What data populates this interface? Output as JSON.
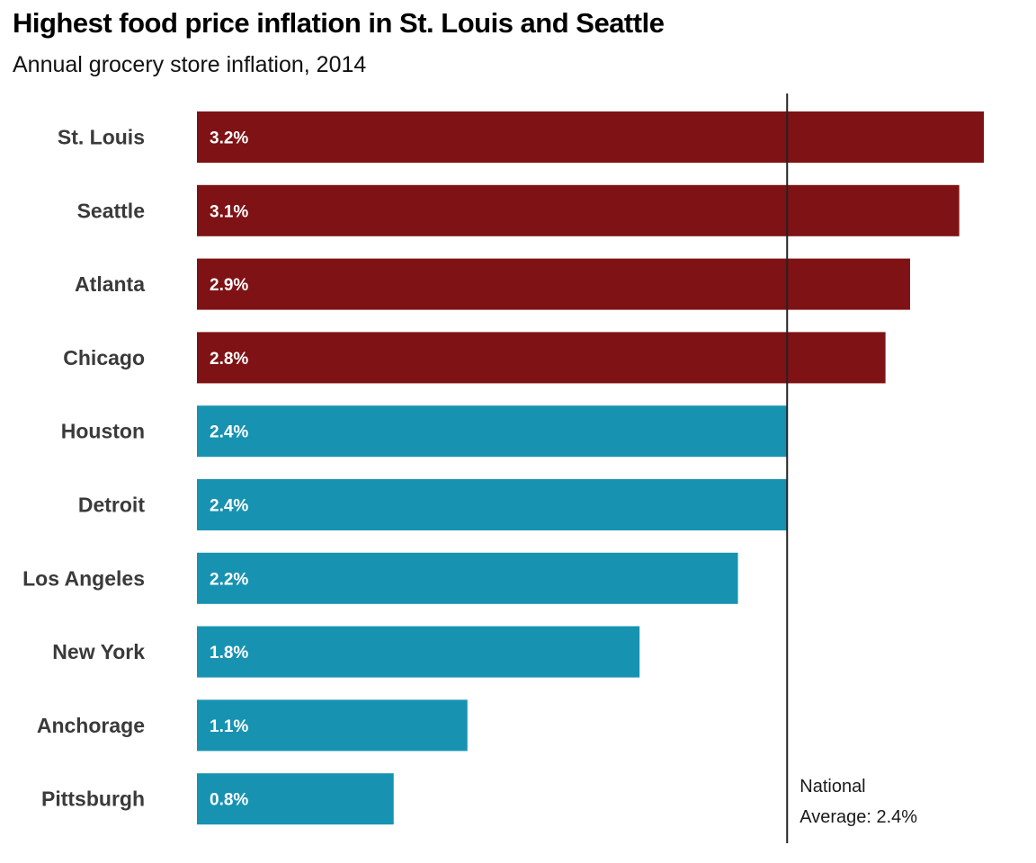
{
  "chart_data": {
    "type": "bar",
    "orientation": "horizontal",
    "title": "Highest food price inflation in St. Louis and Seattle",
    "subtitle": "Annual grocery store inflation, 2014",
    "xlabel": "",
    "ylabel": "",
    "unit": "%",
    "categories": [
      "St. Louis",
      "Seattle",
      "Atlanta",
      "Chicago",
      "Houston",
      "Detroit",
      "Los Angeles",
      "New York",
      "Anchorage",
      "Pittsburgh"
    ],
    "values": [
      3.2,
      3.1,
      2.9,
      2.8,
      2.4,
      2.4,
      2.2,
      1.8,
      1.1,
      0.8
    ],
    "value_labels": [
      "3.2%",
      "3.1%",
      "2.9%",
      "2.8%",
      "2.4%",
      "2.4%",
      "2.2%",
      "1.8%",
      "1.1%",
      "0.8%"
    ],
    "xlim": [
      0,
      3.2
    ],
    "grid": false,
    "legend": "none",
    "colors": {
      "above_average": "#7f1214",
      "at_or_below_average": "#1793b1"
    },
    "reference_line": {
      "value": 2.4,
      "label_lines": [
        "National",
        "Average: 2.4%"
      ]
    }
  }
}
